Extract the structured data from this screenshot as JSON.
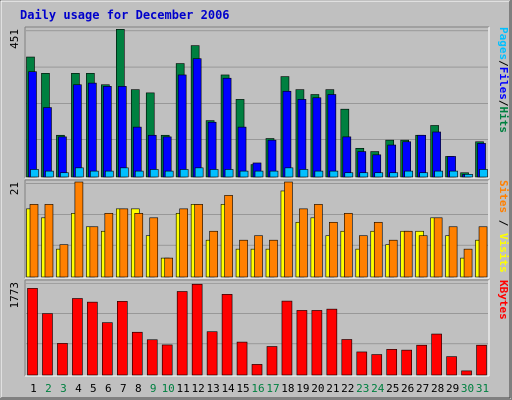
{
  "title": "Daily usage for December 2006",
  "colors": {
    "background": "#C0C0C0",
    "plot_bg": "#C0C0C0",
    "hits": "#008040",
    "files": "#0000FF",
    "pages": "#00C0FF",
    "visits": "#FFFF00",
    "sites": "#FF8000",
    "kbytes": "#FF0000",
    "weekday_label": "#000000",
    "weekend_label": "#008040",
    "title": "#0000CC"
  },
  "chart_data": [
    {
      "type": "bar",
      "panel": "top",
      "ymax_label": "451",
      "right_labels": [
        {
          "text": "Pages",
          "color": "#00C0FF"
        },
        {
          "text": "/",
          "color": "#000000"
        },
        {
          "text": "Files",
          "color": "#0000FF"
        },
        {
          "text": "/",
          "color": "#000000"
        },
        {
          "text": "Hits",
          "color": "#008040"
        }
      ],
      "ylim": [
        0,
        451
      ],
      "categories": [
        "1",
        "2",
        "3",
        "4",
        "5",
        "6",
        "7",
        "8",
        "9",
        "10",
        "11",
        "12",
        "13",
        "14",
        "15",
        "16",
        "17",
        "18",
        "19",
        "20",
        "21",
        "22",
        "23",
        "24",
        "25",
        "26",
        "27",
        "28",
        "29",
        "30",
        "31"
      ],
      "series": [
        {
          "name": "Hits",
          "values": [
            365,
            315,
            125,
            315,
            315,
            280,
            450,
            265,
            255,
            125,
            345,
            400,
            170,
            310,
            235,
            35,
            115,
            305,
            265,
            250,
            265,
            205,
            85,
            75,
            110,
            110,
            125,
            155,
            60,
            10,
            105
          ]
        },
        {
          "name": "Files",
          "values": [
            320,
            210,
            120,
            280,
            285,
            275,
            275,
            150,
            125,
            120,
            310,
            360,
            165,
            300,
            150,
            40,
            110,
            260,
            235,
            240,
            250,
            120,
            75,
            65,
            95,
            105,
            125,
            135,
            60,
            5,
            100
          ]
        },
        {
          "name": "Pages",
          "values": [
            20,
            15,
            10,
            25,
            15,
            15,
            25,
            15,
            20,
            15,
            20,
            25,
            20,
            20,
            15,
            15,
            15,
            25,
            20,
            15,
            15,
            10,
            10,
            10,
            10,
            15,
            10,
            15,
            15,
            5,
            20
          ]
        }
      ]
    },
    {
      "type": "bar",
      "panel": "middle",
      "ymax_label": "21",
      "right_labels": [
        {
          "text": "Sites",
          "color": "#FF8000"
        },
        {
          "text": " / ",
          "color": "#000000"
        },
        {
          "text": "Visits",
          "color": "#FFFF00"
        }
      ],
      "ylim": [
        0,
        21
      ],
      "categories": [
        "1",
        "2",
        "3",
        "4",
        "5",
        "6",
        "7",
        "8",
        "9",
        "10",
        "11",
        "12",
        "13",
        "14",
        "15",
        "16",
        "17",
        "18",
        "19",
        "20",
        "21",
        "22",
        "23",
        "24",
        "25",
        "26",
        "27",
        "28",
        "29",
        "30",
        "31"
      ],
      "series": [
        {
          "name": "Visits",
          "values": [
            15,
            13,
            6,
            14,
            11,
            10,
            15,
            15,
            9,
            4,
            14,
            16,
            8,
            16,
            6,
            6,
            6,
            19,
            12,
            13,
            9,
            10,
            6,
            10,
            7,
            10,
            10,
            13,
            9,
            4,
            8
          ]
        },
        {
          "name": "Sites",
          "values": [
            16,
            16,
            7,
            21,
            11,
            14,
            15,
            14,
            13,
            4,
            15,
            16,
            10,
            18,
            8,
            9,
            8,
            21,
            15,
            16,
            12,
            14,
            9,
            12,
            8,
            10,
            9,
            13,
            11,
            6,
            11
          ]
        }
      ]
    },
    {
      "type": "bar",
      "panel": "bottom",
      "ymax_label": "1773",
      "right_labels": [
        {
          "text": "KBytes",
          "color": "#FF0000"
        }
      ],
      "ylim": [
        0,
        1773
      ],
      "categories": [
        "1",
        "2",
        "3",
        "4",
        "5",
        "6",
        "7",
        "8",
        "9",
        "10",
        "11",
        "12",
        "13",
        "14",
        "15",
        "16",
        "17",
        "18",
        "19",
        "20",
        "21",
        "22",
        "23",
        "24",
        "25",
        "26",
        "27",
        "28",
        "29",
        "30",
        "31"
      ],
      "series": [
        {
          "name": "KBytes",
          "values": [
            1650,
            1165,
            590,
            1455,
            1385,
            990,
            1400,
            805,
            660,
            560,
            1590,
            1730,
            815,
            1535,
            615,
            185,
            530,
            1405,
            1225,
            1225,
            1250,
            665,
            425,
            375,
            475,
            460,
            555,
            770,
            335,
            60,
            555
          ]
        }
      ]
    }
  ],
  "x_labels": {
    "days": [
      "1",
      "2",
      "3",
      "4",
      "5",
      "6",
      "7",
      "8",
      "9",
      "10",
      "11",
      "12",
      "13",
      "14",
      "15",
      "16",
      "17",
      "18",
      "19",
      "20",
      "21",
      "22",
      "23",
      "24",
      "25",
      "26",
      "27",
      "28",
      "29",
      "30",
      "31"
    ],
    "weekend_days": [
      "2",
      "3",
      "9",
      "10",
      "16",
      "17",
      "23",
      "24",
      "30",
      "31"
    ]
  }
}
